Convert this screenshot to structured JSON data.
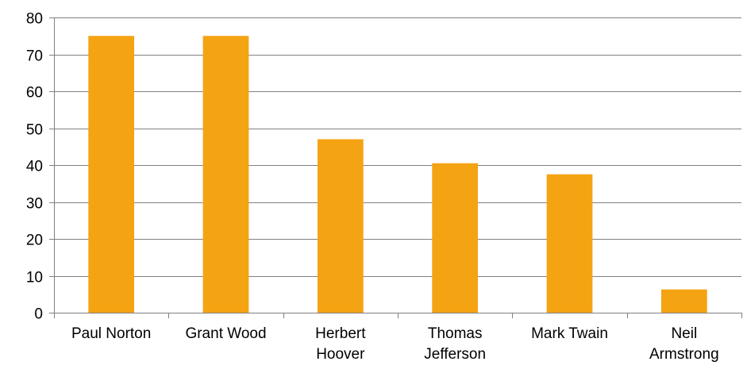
{
  "chart_data": {
    "type": "bar",
    "categories": [
      "Paul Norton",
      "Grant Wood",
      "Herbert Hoover",
      "Thomas Jefferson",
      "Mark Twain",
      "Neil Armstrong"
    ],
    "category_lines": [
      [
        "Paul Norton"
      ],
      [
        "Grant Wood"
      ],
      [
        "Herbert",
        "Hoover"
      ],
      [
        "Thomas",
        "Jefferson"
      ],
      [
        "Mark Twain"
      ],
      [
        "Neil",
        "Armstrong"
      ]
    ],
    "values": [
      75,
      75,
      47,
      40.5,
      37.5,
      6.3
    ],
    "ylim": [
      0,
      80
    ],
    "yticks": [
      0,
      10,
      20,
      30,
      40,
      50,
      60,
      70,
      80
    ],
    "grid": true,
    "legend": "none",
    "bar_color": "#F4A313"
  }
}
